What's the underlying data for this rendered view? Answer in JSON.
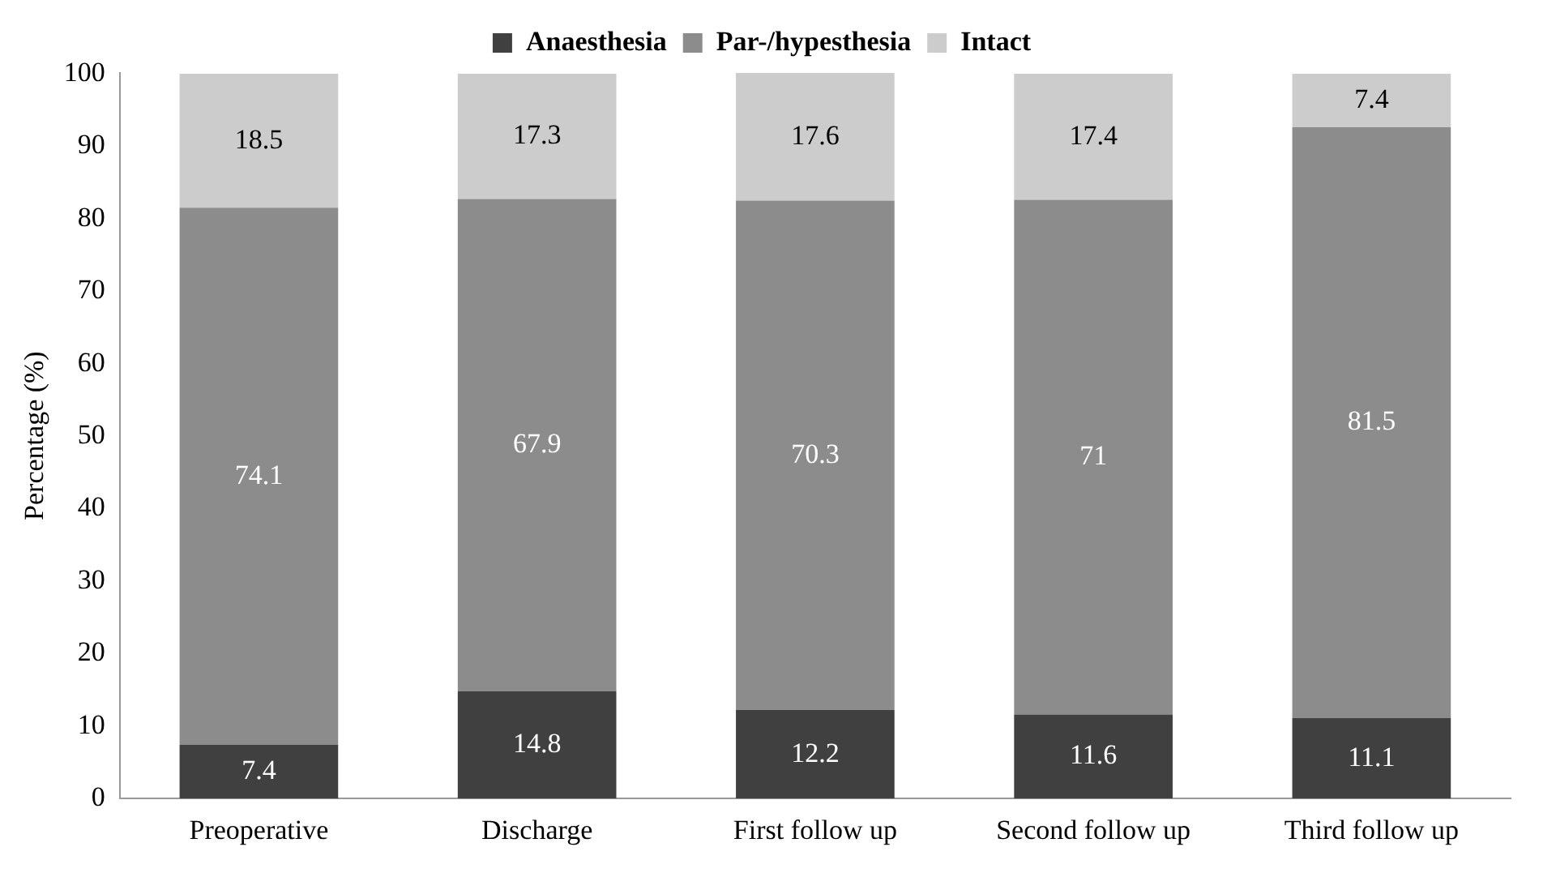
{
  "chart_data": {
    "type": "bar",
    "stacked": true,
    "ylabel": "Percentage (%)",
    "categories": [
      "Preoperative",
      "Discharge",
      "First follow up",
      "Second follow up",
      "Third follow up"
    ],
    "series": [
      {
        "name": "Anaesthesia",
        "color": "#404040",
        "values": [
          7.4,
          14.8,
          12.2,
          11.6,
          11.1
        ]
      },
      {
        "name": "Par-/hypesthesia",
        "color": "#8c8c8c",
        "values": [
          74.1,
          67.9,
          70.3,
          71,
          81.5
        ]
      },
      {
        "name": "Intact",
        "color": "#cccccc",
        "values": [
          18.5,
          17.3,
          17.6,
          17.4,
          7.4
        ]
      }
    ],
    "ylim": [
      0,
      100.1
    ],
    "yticks": [
      0,
      10,
      20,
      30,
      40,
      50,
      60,
      70,
      80,
      90,
      100
    ],
    "grid": false,
    "legend": "top",
    "data_labels": true
  }
}
